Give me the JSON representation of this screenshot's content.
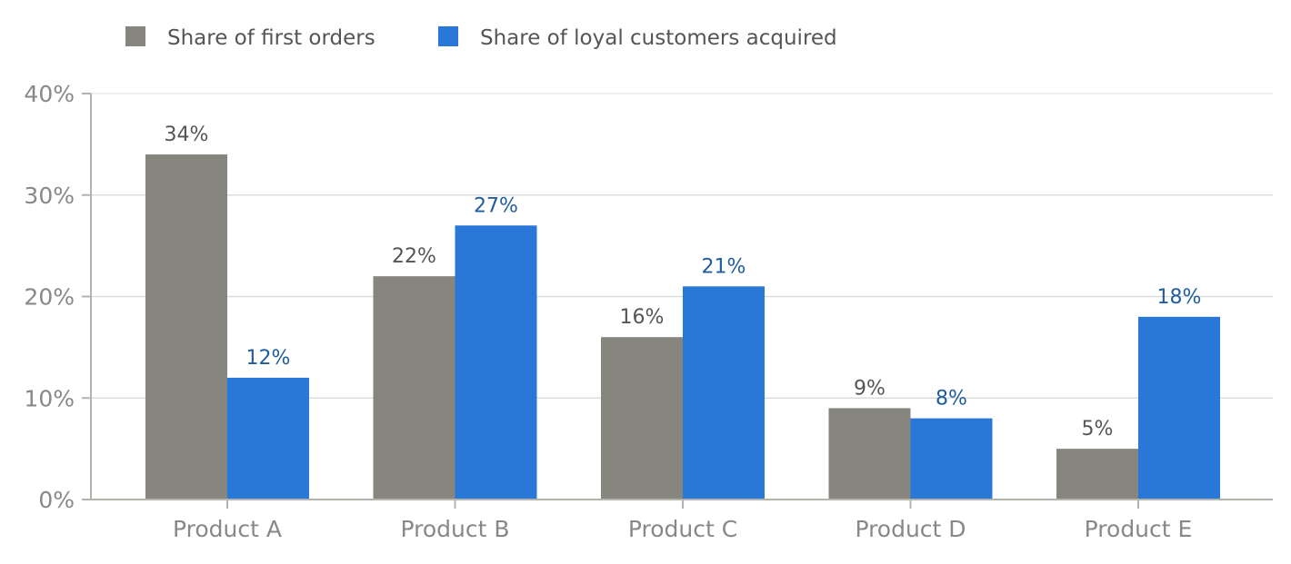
{
  "chart_data": {
    "type": "bar",
    "title": "",
    "xlabel": "",
    "ylabel": "",
    "ylim": [
      0,
      40
    ],
    "yticks": [
      0,
      10,
      20,
      30,
      40
    ],
    "ytick_labels": [
      "0%",
      "10%",
      "20%",
      "30%",
      "40%"
    ],
    "categories": [
      "Product A",
      "Product B",
      "Product C",
      "Product D",
      "Product E"
    ],
    "grid": "horizontal",
    "legend_position": "top-left",
    "series": [
      {
        "name": "Share of first orders",
        "values": [
          34,
          22,
          16,
          9,
          5
        ],
        "value_labels": [
          "34%",
          "22%",
          "16%",
          "9%",
          "5%"
        ],
        "color": "#87867e",
        "label_color": "#555555"
      },
      {
        "name": "Share of loyal customers acquired",
        "values": [
          12,
          27,
          21,
          8,
          18
        ],
        "value_labels": [
          "12%",
          "27%",
          "21%",
          "8%",
          "18%"
        ],
        "color": "#2977d6",
        "label_color": "#1f5d9e"
      }
    ],
    "axis_color": "#b5b4ac",
    "grid_color": "#dcdcdc"
  }
}
